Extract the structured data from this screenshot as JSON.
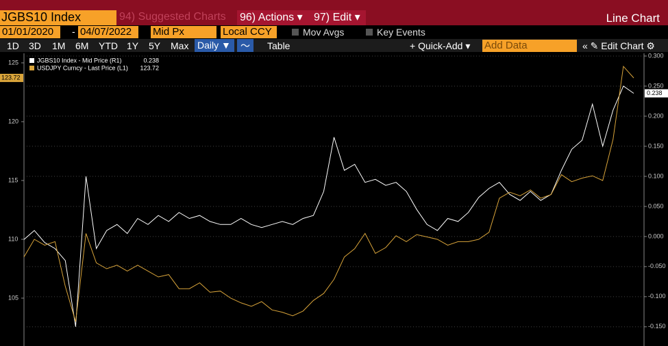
{
  "toolbar": {
    "security": "JGBS10 Index",
    "suggested": "94) Suggested Charts",
    "actions": "96) Actions",
    "edit": "97) Edit",
    "chart_kind": "Line Chart"
  },
  "settings": {
    "start": "01/01/2020",
    "separator": "-",
    "end": "04/07/2022",
    "field": "Mid Px",
    "currency": "Local CCY",
    "mov_avgs": "Mov Avgs",
    "key_events": "Key Events"
  },
  "periods": [
    "1D",
    "3D",
    "1M",
    "6M",
    "YTD",
    "1Y",
    "5Y",
    "Max"
  ],
  "frequency": "Daily",
  "table": "Table",
  "quick_add": "Quick-Add",
  "add_data": "Add Data",
  "edit_chart": "Edit Chart",
  "chart_data": {
    "type": "line",
    "grid": true,
    "ylim": [
      100.93,
      125.81
    ],
    "yticks": [
      105,
      110,
      115,
      120,
      125
    ],
    "y2lim": [
      -0.182,
      0.3045
    ],
    "y2ticks": [
      {
        "value": 0.3,
        "label": "0.300"
      },
      {
        "value": 0.25,
        "label": "0.250"
      },
      {
        "value": 0.2,
        "label": "0.200"
      },
      {
        "value": 0.15,
        "label": "0.150"
      },
      {
        "value": 0.1,
        "label": "0.100"
      },
      {
        "value": 0.05,
        "label": "0.050"
      },
      {
        "value": 0,
        "label": "0.000"
      },
      {
        "value": -0.05,
        "label": "-0.050"
      },
      {
        "value": -0.1,
        "label": "-0.100"
      },
      {
        "value": -0.15,
        "label": "-0.150"
      }
    ],
    "series": [
      {
        "name": "JGBS10 Index - Mid Price (R1)",
        "color": "#ffffff",
        "axis": "y2",
        "last_value": 0.238,
        "values": [
          -0.005,
          0.01,
          -0.01,
          -0.02,
          -0.04,
          -0.15,
          0.1,
          -0.02,
          0.01,
          0.02,
          0.005,
          0.03,
          0.02,
          0.035,
          0.025,
          0.04,
          0.03,
          0.035,
          0.025,
          0.02,
          0.02,
          0.03,
          0.02,
          0.015,
          0.02,
          0.025,
          0.02,
          0.03,
          0.035,
          0.075,
          0.165,
          0.11,
          0.12,
          0.09,
          0.095,
          0.085,
          0.09,
          0.075,
          0.045,
          0.02,
          0.01,
          0.03,
          0.025,
          0.04,
          0.065,
          0.08,
          0.09,
          0.07,
          0.06,
          0.075,
          0.06,
          0.07,
          0.11,
          0.145,
          0.16,
          0.22,
          0.15,
          0.21,
          0.25,
          0.238
        ]
      },
      {
        "name": "USDJPY Curncy - Last Price (L1)",
        "color": "#d9a43a",
        "last_value": 123.72,
        "values": [
          108.5,
          110,
          109.5,
          109.8,
          106,
          103,
          110.5,
          108,
          107.5,
          107.8,
          107.3,
          107.8,
          107.3,
          106.8,
          107,
          105.8,
          105.8,
          106.3,
          105.5,
          105.6,
          105,
          104.6,
          104.3,
          104.7,
          104,
          103.8,
          103.5,
          103.9,
          104.8,
          105.4,
          106.6,
          108.5,
          109.2,
          110.5,
          108.8,
          109.3,
          110.3,
          109.8,
          110.4,
          110.2,
          110,
          109.5,
          109.8,
          109.8,
          110,
          110.6,
          113.5,
          114,
          113.7,
          114.2,
          113.5,
          113.8,
          115.5,
          114.9,
          115.2,
          115.4,
          115,
          118.5,
          124.7,
          123.72
        ]
      }
    ]
  }
}
